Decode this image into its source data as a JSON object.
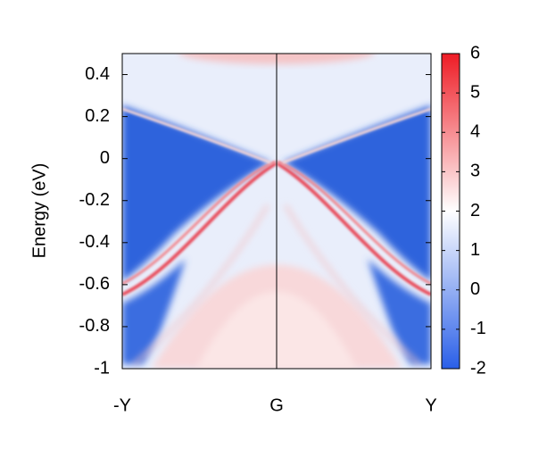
{
  "chart_data": {
    "type": "heatmap",
    "ylabel": "Energy (eV)",
    "xlim": [
      -1,
      1
    ],
    "xticks": [
      {
        "value": -1,
        "label": "-Y"
      },
      {
        "value": 0,
        "label": "G"
      },
      {
        "value": 1,
        "label": "Y"
      }
    ],
    "ylim": [
      -1,
      0.5
    ],
    "yticks": [
      0.4,
      0.2,
      0,
      -0.2,
      -0.4,
      -0.6,
      -0.8,
      -1
    ],
    "zlim": [
      -2,
      6
    ],
    "zticks": [
      -2,
      -1,
      0,
      1,
      2,
      3,
      4,
      5,
      6
    ],
    "colormap": [
      "#2a5fe8",
      "#ffffff",
      "#ee1c25"
    ]
  }
}
